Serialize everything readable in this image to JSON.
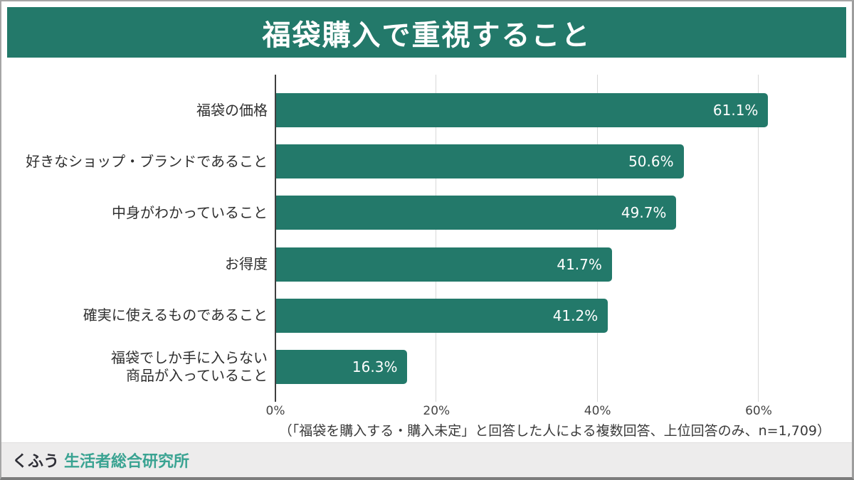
{
  "title": "福袋購入で重視すること",
  "colors": {
    "accent_green": "#23796a",
    "footer_teal": "#3aa392",
    "gridline": "#d8d8d8",
    "axis": "#3f3f3f"
  },
  "chart_data": {
    "type": "bar",
    "orientation": "horizontal",
    "title": "福袋購入で重視すること",
    "categories": [
      "福袋の価格",
      "好きなショップ・ブランドであること",
      "中身がわかっていること",
      "お得度",
      "確実に使えるものであること",
      "福袋でしか手に入らない\n商品が入っていること"
    ],
    "values": [
      61.1,
      50.6,
      49.7,
      41.7,
      41.2,
      16.3
    ],
    "value_labels": [
      "61.1%",
      "50.6%",
      "49.7%",
      "41.7%",
      "41.2%",
      "16.3%"
    ],
    "xlabel": "",
    "ylabel": "",
    "xlim": [
      0,
      67
    ],
    "x_ticks": [
      {
        "label": "0%",
        "value": 0
      },
      {
        "label": "20%",
        "value": 20
      },
      {
        "label": "40%",
        "value": 40
      },
      {
        "label": "60%",
        "value": 60
      }
    ],
    "grid": "vertical",
    "legend": "none"
  },
  "footnote": "（「福袋を購入する・購入未定」と回答した人による複数回答、上位回答のみ、n=1,709）",
  "footer": {
    "brand_prefix": "くふう",
    "brand_name": "生活者総合研究所"
  }
}
